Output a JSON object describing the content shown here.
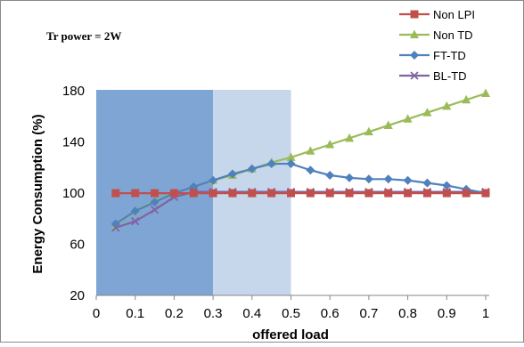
{
  "chart_data": {
    "type": "line",
    "annotation": "Tr power = 2W",
    "xlabel": "offered load",
    "ylabel": "Energy Consumption  (%)",
    "xlim": [
      0,
      1
    ],
    "ylim": [
      20,
      185
    ],
    "x_ticks": [
      0,
      0.1,
      0.2,
      0.3,
      0.4,
      0.5,
      0.6,
      0.7,
      0.8,
      0.9,
      1
    ],
    "x_tick_labels": [
      "0",
      "0.1",
      "0.2",
      "0.3",
      "0.4",
      "0.5",
      "0.6",
      "0.7",
      "0.8",
      "0.9",
      "1"
    ],
    "y_ticks": [
      20,
      60,
      100,
      140,
      180
    ],
    "y_tick_labels": [
      "20",
      "60",
      "100",
      "140",
      "180"
    ],
    "shaded_regions": [
      {
        "x0": 0.0,
        "x1": 0.3,
        "color": "#7fa5d4"
      },
      {
        "x0": 0.3,
        "x1": 0.5,
        "color": "#c6d6eb"
      }
    ],
    "grid": false,
    "legend_position": "top-right",
    "x": [
      0.05,
      0.1,
      0.15,
      0.2,
      0.25,
      0.3,
      0.35,
      0.4,
      0.45,
      0.5,
      0.55,
      0.6,
      0.65,
      0.7,
      0.75,
      0.8,
      0.85,
      0.9,
      0.95,
      1.0
    ],
    "series": [
      {
        "name": "Non LPI",
        "color": "#c0504d",
        "marker": "square",
        "values": [
          100,
          100,
          100,
          100,
          100,
          100,
          100,
          100,
          100,
          100,
          100,
          100,
          100,
          100,
          100,
          100,
          100,
          100,
          100,
          100
        ]
      },
      {
        "name": "Non TD",
        "color": "#9bbb59",
        "marker": "triangle",
        "values": [
          75,
          86,
          94,
          100,
          105,
          110,
          114,
          119,
          124,
          128,
          133,
          138,
          143,
          148,
          153,
          158,
          163,
          168,
          173,
          178
        ]
      },
      {
        "name": "FT-TD",
        "color": "#4f81bd",
        "marker": "diamond",
        "values": [
          76,
          86,
          93,
          100,
          105,
          110,
          115,
          119,
          123,
          123,
          118,
          114,
          112,
          111,
          111,
          110,
          108,
          106,
          103,
          100
        ]
      },
      {
        "name": "BL-TD",
        "color": "#8064a2",
        "marker": "x",
        "values": [
          73,
          78,
          87,
          97,
          101,
          101,
          101,
          101,
          101,
          101,
          101,
          101,
          101,
          101,
          101,
          101,
          101,
          101,
          101,
          101
        ]
      }
    ]
  }
}
